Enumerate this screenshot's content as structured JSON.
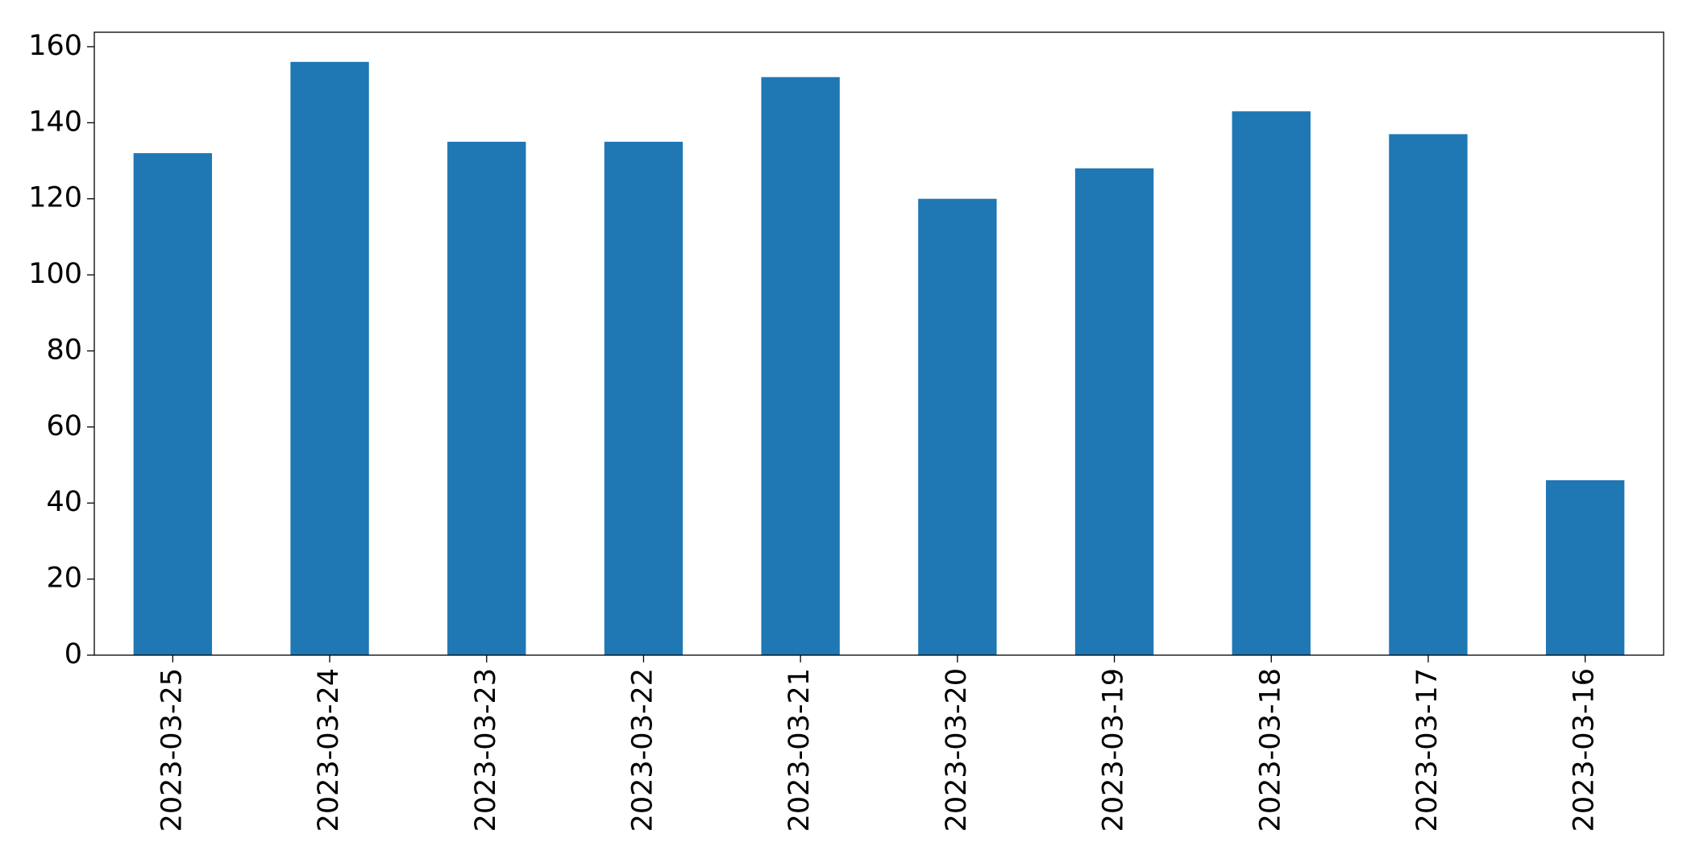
{
  "chart_data": {
    "type": "bar",
    "categories": [
      "2023-03-25",
      "2023-03-24",
      "2023-03-23",
      "2023-03-22",
      "2023-03-21",
      "2023-03-20",
      "2023-03-19",
      "2023-03-18",
      "2023-03-17",
      "2023-03-16"
    ],
    "values": [
      132,
      156,
      135,
      135,
      152,
      120,
      128,
      143,
      137,
      46
    ],
    "color": "#1f77b4",
    "ylim": [
      0,
      163.8
    ],
    "yticks": [
      0,
      20,
      40,
      60,
      80,
      100,
      120,
      140,
      160
    ],
    "grid": false
  }
}
